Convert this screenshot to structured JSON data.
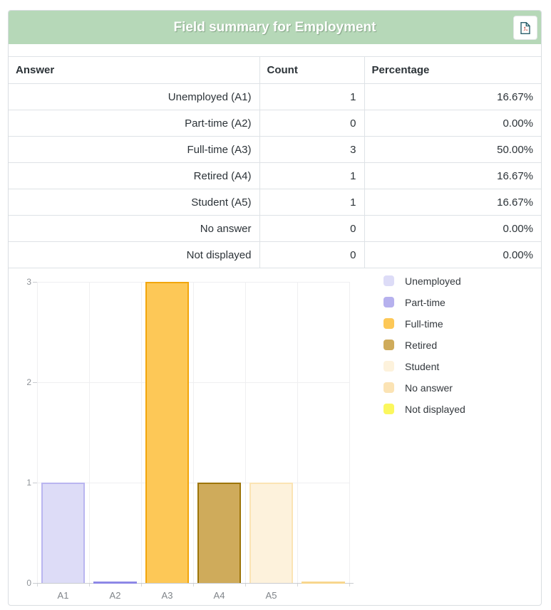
{
  "header": {
    "title": "Field summary for Employment",
    "export_icon": "pdf-file-icon"
  },
  "table": {
    "headers": [
      "Answer",
      "Count",
      "Percentage"
    ],
    "rows": [
      [
        "Unemployed (A1)",
        "1",
        "16.67%"
      ],
      [
        "Part-time (A2)",
        "0",
        "0.00%"
      ],
      [
        "Full-time (A3)",
        "3",
        "50.00%"
      ],
      [
        "Retired (A4)",
        "1",
        "16.67%"
      ],
      [
        "Student (A5)",
        "1",
        "16.67%"
      ],
      [
        "No answer",
        "0",
        "0.00%"
      ],
      [
        "Not displayed",
        "0",
        "0.00%"
      ]
    ]
  },
  "chart_data": {
    "type": "bar",
    "title": "",
    "categories": [
      "A1",
      "A2",
      "A3",
      "A4",
      "A5",
      ""
    ],
    "values": [
      1,
      0,
      3,
      1,
      1,
      0
    ],
    "ylim": [
      0,
      3
    ],
    "yticks": [
      0,
      1,
      2,
      3
    ],
    "grid": true,
    "legend_position": "right",
    "legend": [
      {
        "label": "Unemployed",
        "fill": "#dddcf7",
        "border": "#b9b5f0"
      },
      {
        "label": "Part-time",
        "fill": "#b6b1ee",
        "border": "#8d87e6"
      },
      {
        "label": "Full-time",
        "fill": "#fdc857",
        "border": "#f2a60d"
      },
      {
        "label": "Retired",
        "fill": "#cfab5b",
        "border": "#9d7509"
      },
      {
        "label": "Student",
        "fill": "#fdf2dc",
        "border": "#fbe4b4"
      },
      {
        "label": "No answer",
        "fill": "#fbe3b4",
        "border": "#f8d68e"
      },
      {
        "label": "Not displayed",
        "fill": "#fbf75e",
        "border": "#f0ea45"
      }
    ]
  },
  "colors": {
    "header_bg": "#b6d8b8",
    "header_text": "#ffffff",
    "card_border": "#d9dde1",
    "row_border": "#dee2e6",
    "text": "#2c3338",
    "tick_text": "#8d9297",
    "grid_line": "#efeff1",
    "axis_line": "#c9ccd0",
    "pdf_icon_outline": "#2a5f6b",
    "pdf_icon_accent": "#c43e2f"
  }
}
